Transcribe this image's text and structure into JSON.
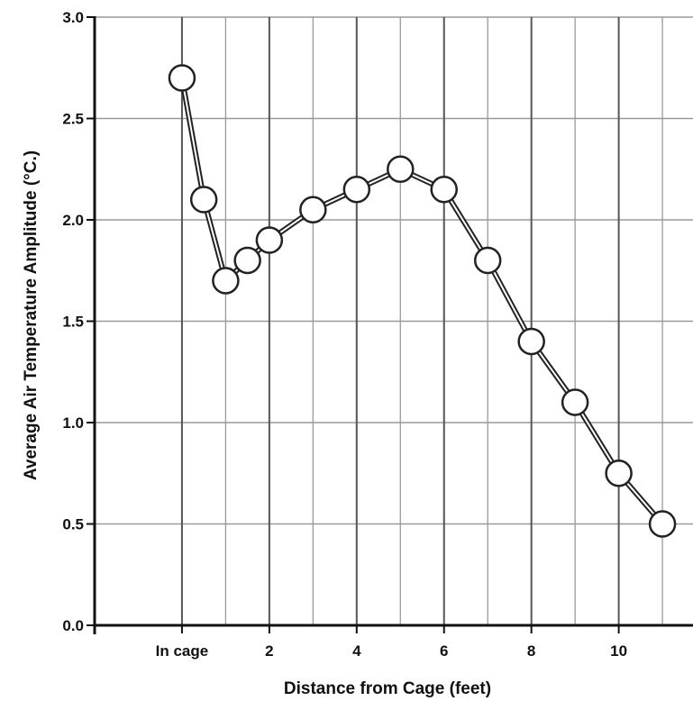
{
  "chart_data": {
    "type": "line",
    "title": "",
    "xlabel": "Distance from Cage  (feet)",
    "ylabel": "Average Air Temperature Amplitude (°C.)",
    "xlim": [
      -2,
      11.7
    ],
    "ylim": [
      0,
      3.0
    ],
    "x_ticks": [
      {
        "value": 0,
        "label": "In cage"
      },
      {
        "value": 2,
        "label": "2"
      },
      {
        "value": 4,
        "label": "4"
      },
      {
        "value": 6,
        "label": "6"
      },
      {
        "value": 8,
        "label": "8"
      },
      {
        "value": 10,
        "label": "10"
      }
    ],
    "y_ticks": [
      {
        "value": 0.0,
        "label": "0.0"
      },
      {
        "value": 0.5,
        "label": "0.5"
      },
      {
        "value": 1.0,
        "label": "1.0"
      },
      {
        "value": 1.5,
        "label": "1.5"
      },
      {
        "value": 2.0,
        "label": "2.0"
      },
      {
        "value": 2.5,
        "label": "2.5"
      },
      {
        "value": 3.0,
        "label": "3.0"
      }
    ],
    "grid": true,
    "series": [
      {
        "points": [
          {
            "x": 0,
            "y": 2.7
          },
          {
            "x": 0.5,
            "y": 2.1
          },
          {
            "x": 1,
            "y": 1.7
          },
          {
            "x": 1.5,
            "y": 1.8
          },
          {
            "x": 2,
            "y": 1.9
          },
          {
            "x": 3,
            "y": 2.05
          },
          {
            "x": 4,
            "y": 2.15
          },
          {
            "x": 5,
            "y": 2.25
          },
          {
            "x": 6,
            "y": 2.15
          },
          {
            "x": 7,
            "y": 1.8
          },
          {
            "x": 8,
            "y": 1.4
          },
          {
            "x": 9,
            "y": 1.1
          },
          {
            "x": 10,
            "y": 0.75
          },
          {
            "x": 11,
            "y": 0.5
          }
        ]
      }
    ],
    "colors": {
      "line": "#222222",
      "marker_fill": "#ffffff",
      "grid": "#9a9a9a",
      "axis": "#111111"
    }
  }
}
